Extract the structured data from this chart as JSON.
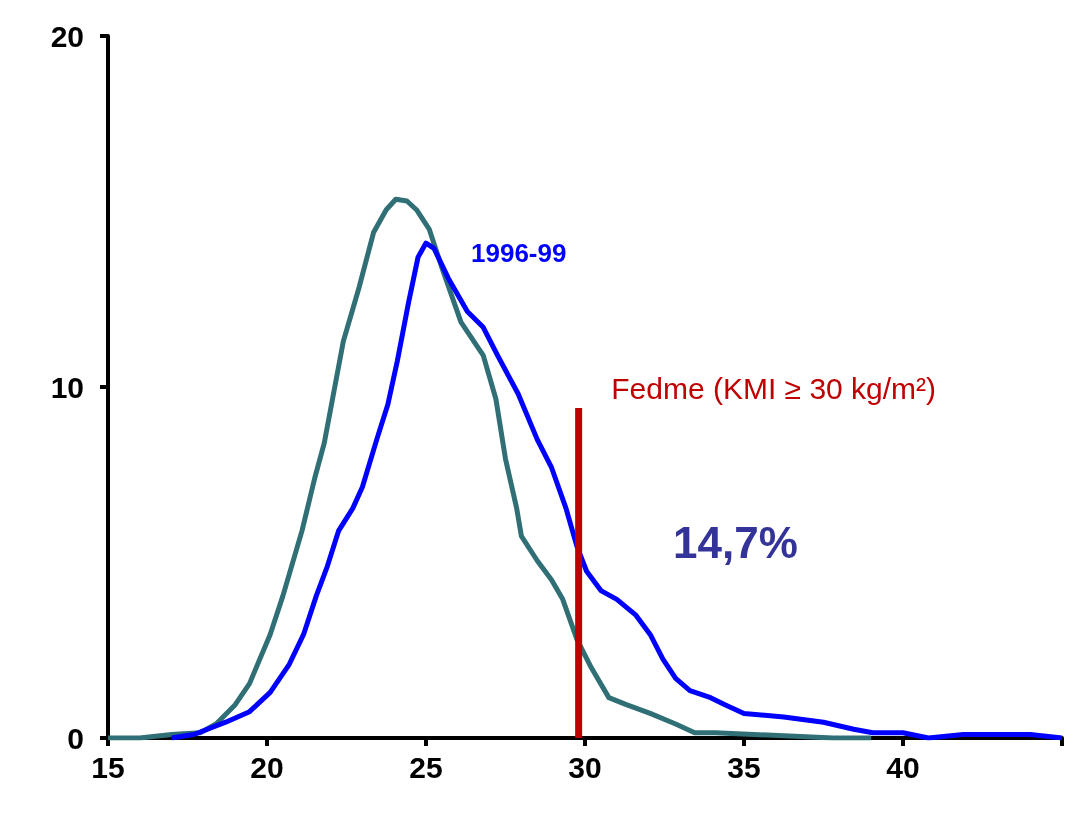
{
  "chart_data": {
    "type": "line",
    "xlim": [
      15,
      45
    ],
    "xticks": [
      15,
      20,
      25,
      30,
      35,
      40,
      {
        "value": 45,
        "label": null
      }
    ],
    "ylim": [
      0,
      20
    ],
    "yticks": [
      0,
      10,
      20
    ],
    "grid": false,
    "legend": false,
    "marker": "none",
    "line_style": "solid",
    "annotations": [
      "14,7%"
    ],
    "series": [
      {
        "color": "#2f6f75",
        "x": [
          15,
          16,
          17,
          17.9,
          18.4,
          19,
          19.45,
          20.1,
          20.5,
          21.1,
          21.5,
          21.8,
          22.4,
          22.9,
          23.35,
          23.75,
          24.05,
          24.4,
          24.7,
          25.1,
          25.5,
          26.1,
          26.8,
          27.2,
          27.5,
          27.85,
          28,
          28.5,
          28.95,
          29.3,
          29.75,
          30.2,
          30.75,
          31.3,
          32.05,
          32.85,
          33.45,
          34.1,
          35.3,
          36.6,
          37.8,
          39
        ],
        "values": [
          0,
          0,
          0.1,
          0.15,
          0.4,
          0.95,
          1.55,
          2.95,
          4.05,
          5.9,
          7.4,
          8.4,
          11.3,
          12.85,
          14.4,
          15.05,
          15.35,
          15.3,
          15.05,
          14.5,
          13.4,
          11.85,
          10.9,
          9.65,
          7.95,
          6.55,
          5.75,
          5.05,
          4.5,
          3.95,
          2.8,
          2,
          1.15,
          0.95,
          0.7,
          0.4,
          0.15,
          0.15,
          0.1,
          0.05,
          0,
          0
        ]
      },
      {
        "name": "1996-99",
        "color": "#0000ff",
        "x": [
          17,
          17.7,
          18.7,
          19.45,
          20.1,
          20.7,
          21.15,
          21.55,
          21.9,
          22.25,
          22.7,
          23,
          23.45,
          23.8,
          24.1,
          24.45,
          24.75,
          25,
          25.25,
          25.7,
          26.3,
          26.8,
          27.25,
          27.9,
          28.5,
          28.95,
          29.4,
          29.75,
          30.05,
          30.5,
          31,
          31.6,
          32.05,
          32.45,
          32.85,
          33.3,
          33.95,
          34.4,
          35,
          36.25,
          37.5,
          38.45,
          39.05,
          40,
          40.8,
          41.9,
          44,
          45
        ],
        "values": [
          0,
          0.1,
          0.45,
          0.75,
          1.3,
          2.1,
          2.95,
          4.05,
          4.9,
          5.9,
          6.55,
          7.15,
          8.5,
          9.5,
          10.75,
          12.4,
          13.7,
          14.1,
          13.95,
          13.1,
          12.15,
          11.7,
          10.9,
          9.8,
          8.5,
          7.7,
          6.55,
          5.45,
          4.75,
          4.2,
          3.95,
          3.5,
          2.95,
          2.25,
          1.7,
          1.35,
          1.15,
          0.95,
          0.7,
          0.6,
          0.45,
          0.25,
          0.15,
          0.15,
          0,
          0.1,
          0.1,
          0
        ]
      },
      {
        "name": "Fedme (KMI ≥ 30 kg/m²)",
        "color": "#c00000",
        "x": [
          29.8,
          29.8
        ],
        "values": [
          0,
          9.4
        ]
      }
    ]
  }
}
